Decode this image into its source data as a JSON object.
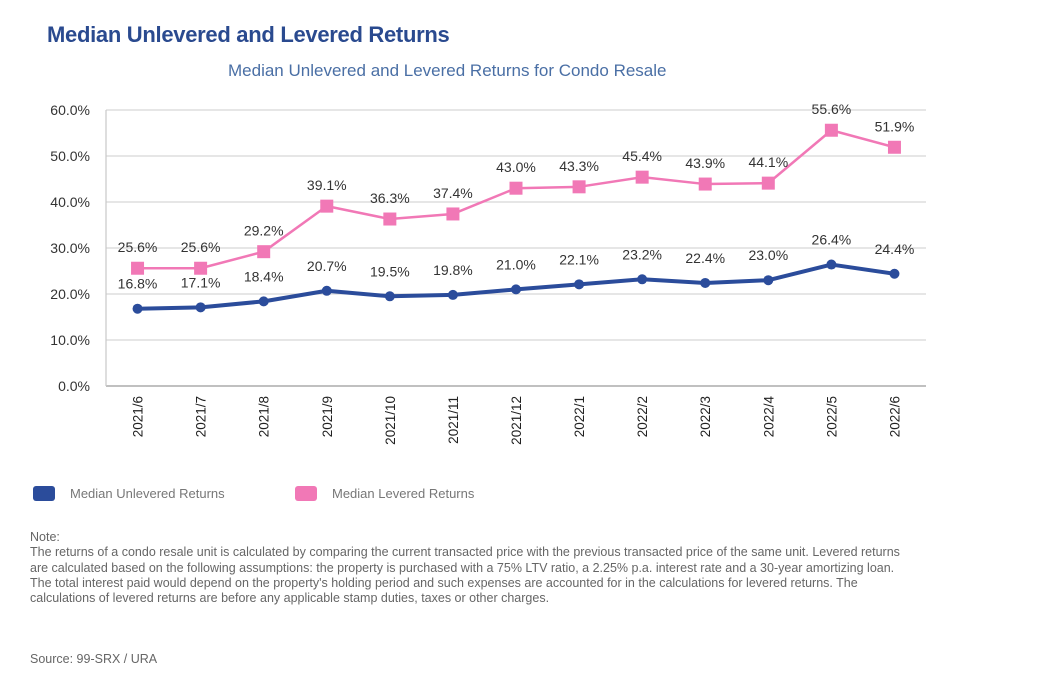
{
  "header": {
    "title": "Median Unlevered and Levered Returns"
  },
  "chart_data": {
    "type": "line",
    "title": "Median Unlevered and Levered Returns for Condo Resale",
    "xlabel": "",
    "ylabel": "",
    "categories": [
      "2021/6",
      "2021/7",
      "2021/8",
      "2021/9",
      "2021/10",
      "2021/11",
      "2021/12",
      "2022/1",
      "2022/2",
      "2022/3",
      "2022/4",
      "2022/5",
      "2022/6"
    ],
    "ylim": [
      0,
      60
    ],
    "yticks": [
      0,
      10,
      20,
      30,
      40,
      50,
      60
    ],
    "ytick_labels": [
      "0.0%",
      "10.0%",
      "20.0%",
      "30.0%",
      "40.0%",
      "50.0%",
      "60.0%"
    ],
    "grid": true,
    "legend_position": "bottom-left",
    "series": [
      {
        "name": "Median Unlevered Returns",
        "color": "#2b4c9b",
        "marker": "circle",
        "values": [
          16.8,
          17.1,
          18.4,
          20.7,
          19.5,
          19.8,
          21.0,
          22.1,
          23.2,
          22.4,
          23.0,
          26.4,
          24.4
        ],
        "labels": [
          "16.8%",
          "17.1%",
          "18.4%",
          "20.7%",
          "19.5%",
          "19.8%",
          "21.0%",
          "22.1%",
          "23.2%",
          "22.4%",
          "23.0%",
          "26.4%",
          "24.4%"
        ]
      },
      {
        "name": "Median Levered Returns",
        "color": "#f178b6",
        "marker": "square",
        "values": [
          25.6,
          25.6,
          29.2,
          39.1,
          36.3,
          37.4,
          43.0,
          43.3,
          45.4,
          43.9,
          44.1,
          55.6,
          51.9
        ],
        "labels": [
          "25.6%",
          "25.6%",
          "29.2%",
          "39.1%",
          "36.3%",
          "37.4%",
          "43.0%",
          "43.3%",
          "45.4%",
          "43.9%",
          "44.1%",
          "55.6%",
          "51.9%"
        ]
      }
    ]
  },
  "note": {
    "heading": "Note:",
    "text": "The returns of a condo resale unit is calculated by comparing the current transacted price with the previous transacted price of the same unit. Levered returns are calculated based on the following assumptions: the property is purchased with a 75% LTV ratio, a 2.25% p.a. interest rate and a 30-year amortizing loan. The total interest paid would depend on the property's holding period and such expenses are accounted for in the calculations for levered returns. The calculations of levered returns are before any applicable stamp duties, taxes or other charges."
  },
  "source": "Source: 99-SRX / URA"
}
